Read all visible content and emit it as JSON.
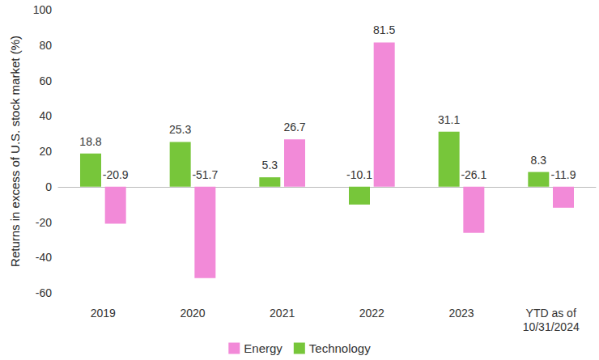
{
  "chart_data": {
    "type": "bar",
    "y_label": "Returns in excess of U.S. stock market (%)",
    "categories": [
      "2019",
      "2020",
      "2021",
      "2022",
      "2023",
      "YTD as of\n10/31/2024"
    ],
    "series": [
      {
        "name": "Technology",
        "color": "#77c63a",
        "values": [
          18.8,
          25.3,
          5.3,
          -10.1,
          31.1,
          8.3
        ]
      },
      {
        "name": "Energy",
        "color": "#f28ad8",
        "values": [
          -20.9,
          -51.7,
          26.7,
          81.5,
          -26.1,
          -11.9
        ]
      }
    ],
    "ylim": [
      -60,
      100
    ],
    "yticks": [
      -60,
      -40,
      -20,
      0,
      20,
      40,
      60,
      80,
      100
    ],
    "grid": false,
    "legend": "bottom",
    "data_labels": true
  }
}
